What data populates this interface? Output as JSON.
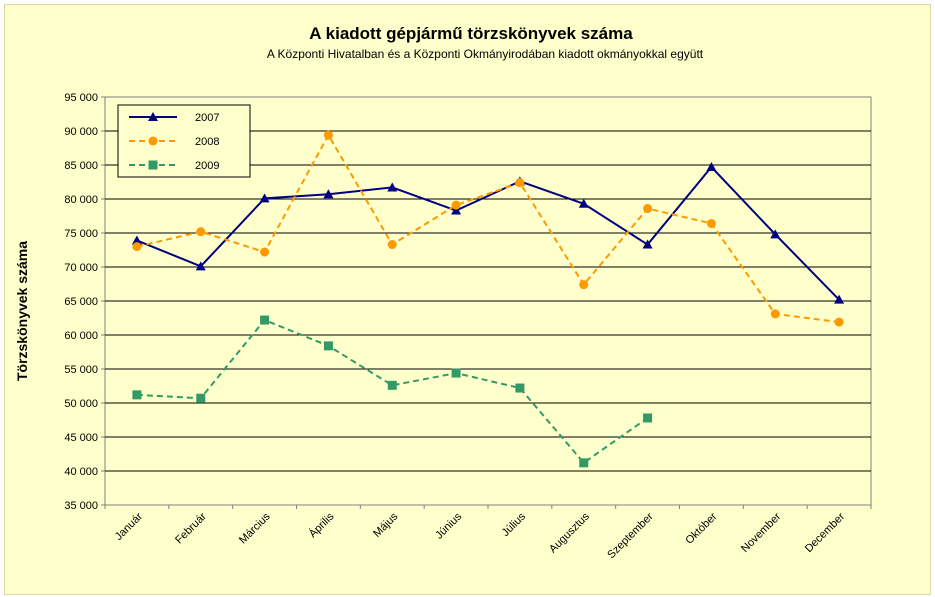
{
  "chart_data": {
    "type": "line",
    "title": "A  kiadott gépjármű  törzskönyvek száma",
    "subtitle": "A Központi Hivatalban és a Központi Okmányirodában kiadott okmányokkal együtt",
    "ylabel": "Törzskönyvek száma",
    "xlabel": "",
    "ylim": [
      35000,
      95000
    ],
    "ytick_step": 5000,
    "ytick_labels": [
      "35 000",
      "40 000",
      "45 000",
      "50 000",
      "55 000",
      "60 000",
      "65 000",
      "70 000",
      "75 000",
      "80 000",
      "85 000",
      "90 000",
      "95 000"
    ],
    "categories": [
      "Január",
      "Február",
      "Március",
      "Április",
      "Május",
      "Június",
      "Július",
      "Augusztus",
      "Szeptember",
      "Október",
      "November",
      "December"
    ],
    "grid": true,
    "legend_position": "top-left",
    "series": [
      {
        "name": "2007",
        "color": "#000080",
        "dash": "solid",
        "marker": "triangle",
        "values": [
          73900,
          70100,
          80100,
          80700,
          81700,
          78300,
          82600,
          79300,
          73300,
          84700,
          74800,
          65200
        ]
      },
      {
        "name": "2008",
        "color": "#ff9900",
        "dash": "dashed",
        "marker": "circle",
        "values": [
          73000,
          75200,
          72200,
          89400,
          73300,
          79100,
          82400,
          67400,
          78600,
          76400,
          63100,
          61900
        ]
      },
      {
        "name": "2009",
        "color": "#339966",
        "dash": "dashed",
        "marker": "square",
        "values": [
          51200,
          50700,
          62200,
          58400,
          52600,
          54400,
          52200,
          41200,
          47800,
          null,
          null,
          null
        ]
      }
    ],
    "colors": {
      "plot_background": "#ffffcc",
      "grid": "#000000",
      "axis": "#808080"
    }
  }
}
